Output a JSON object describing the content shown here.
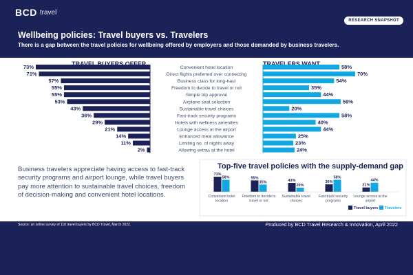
{
  "header": {
    "logo_text": "BCD",
    "logo_sub": "travel",
    "badge": "RESEARCH SNAPSHOT",
    "title": "Wellbeing policies: Travel buyers vs. Travelers",
    "subtitle": "There is a gap between the travel policies for wellbeing offered by employers and those demanded by business travelers."
  },
  "chart_data": [
    {
      "type": "bar",
      "orientation": "horizontal-butterfly",
      "left_title": "TRAVEL BUYERS OFFER",
      "right_title": "TRAVELERS WANT",
      "categories": [
        "Convenient hotel location",
        "Direct flights preferred over connecting",
        "Business class for long-haul",
        "Freedom to decide to travel or not",
        "Simple trip approval",
        "Airplane seat selection",
        "Sustainable travel choices",
        "Fast-track security programs",
        "Hotels with wellness amenities",
        "Lounge access at the airport",
        "Enhanced meal allowance",
        "Limiting no. of nights away",
        "Allowing extras at the hotel"
      ],
      "series": [
        {
          "name": "Travel buyers",
          "values": [
            73,
            71,
            57,
            55,
            55,
            53,
            43,
            36,
            29,
            21,
            14,
            11,
            2
          ]
        },
        {
          "name": "Travelers",
          "values": [
            58,
            70,
            54,
            35,
            44,
            59,
            20,
            58,
            40,
            44,
            25,
            23,
            24
          ]
        }
      ],
      "unit": "%",
      "colors": {
        "buyers": "#1b2257",
        "travelers": "#12a7e0"
      }
    },
    {
      "type": "bar",
      "title": "Top-five travel policies with the supply-demand gap",
      "categories": [
        [
          "Convenient hotel",
          "location"
        ],
        [
          "Freedom to decide to",
          "travel or not"
        ],
        [
          "Sustainable travel",
          "choices"
        ],
        [
          "Fast-track security",
          "programs"
        ],
        [
          "Lounge access at the",
          "airport"
        ]
      ],
      "series": [
        {
          "name": "Travel buyers",
          "values": [
            73,
            55,
            43,
            36,
            21
          ]
        },
        {
          "name": "Travelers",
          "values": [
            58,
            35,
            20,
            58,
            44
          ]
        }
      ],
      "unit": "%",
      "legend": "bottom-right",
      "colors": {
        "buyers": "#1b2257",
        "travelers": "#12a7e0"
      }
    }
  ],
  "body_text": "Business travelers appreciate having access to fast-track security programs and airport lounge, while travel buyers pay more attention to sustainable travel choices, freedom of decision-making and convenient hotel locations.",
  "footer": {
    "source": "Source: an online survey of 118 travel buyers by BCD Travel, March 2022.",
    "produced": "Produced by BCD Travel Research & Innovation, April 2022"
  }
}
